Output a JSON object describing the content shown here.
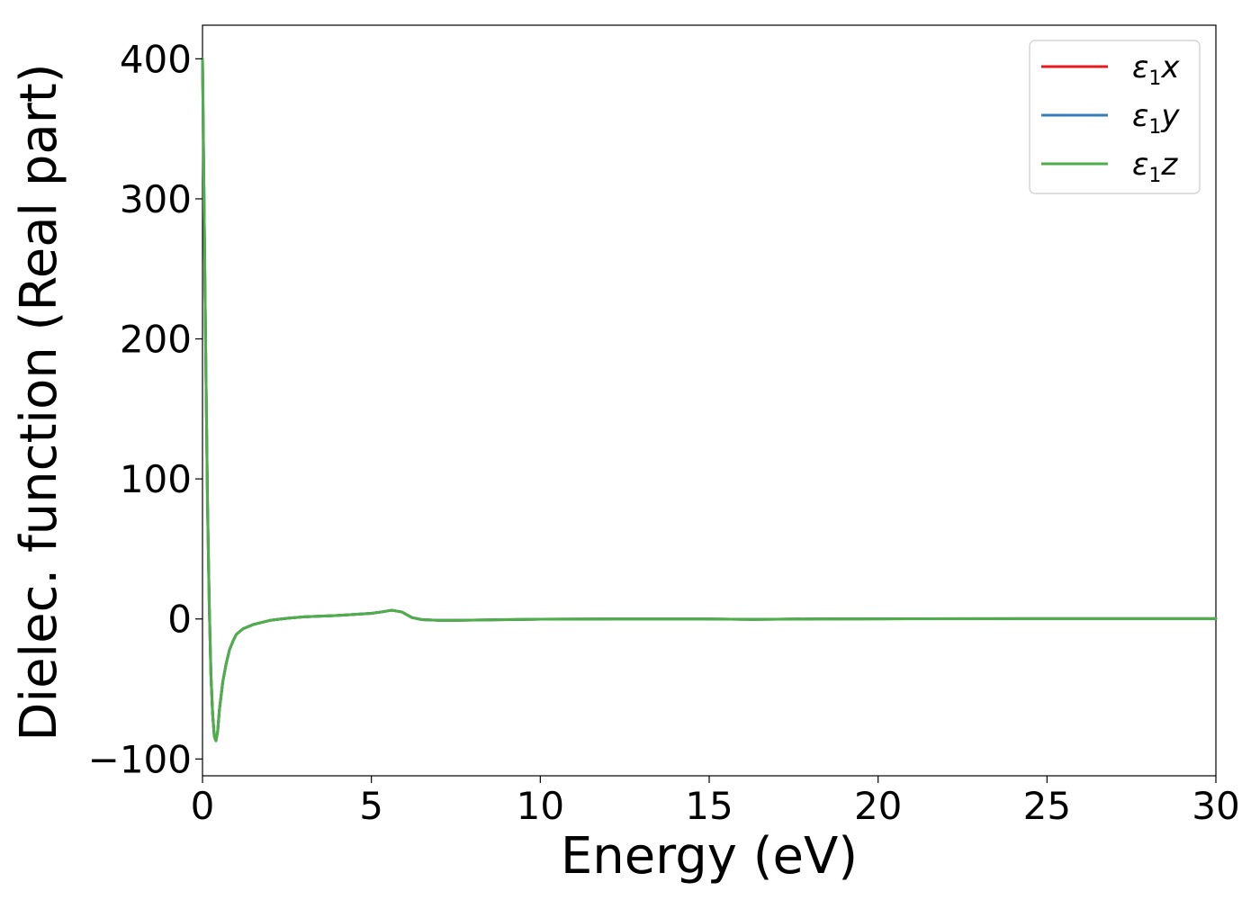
{
  "chart_data": {
    "type": "line",
    "xlabel": "Energy (eV)",
    "ylabel": "Dielec. function (Real part)",
    "xlim": [
      0,
      30
    ],
    "ylim": [
      -112,
      424
    ],
    "xticks": [
      0,
      5,
      10,
      15,
      20,
      25,
      30
    ],
    "xtick_labels": [
      "0",
      "5",
      "10",
      "15",
      "20",
      "25",
      "30"
    ],
    "yticks": [
      -100,
      0,
      100,
      200,
      300,
      400
    ],
    "ytick_labels": [
      "−100",
      "0",
      "100",
      "200",
      "300",
      "400"
    ],
    "grid": false,
    "legend_position": "top-right",
    "series": [
      {
        "name": "ε₁x",
        "symbol": "ε",
        "subscript": "1",
        "suffix": "x",
        "color": "#e41a1c",
        "x": [
          0.0,
          0.05,
          0.1,
          0.15,
          0.2,
          0.25,
          0.3,
          0.35,
          0.4,
          0.45,
          0.5,
          0.6,
          0.7,
          0.8,
          0.9,
          1.0,
          1.2,
          1.5,
          2.0,
          2.5,
          3.0,
          4.0,
          5.0,
          5.3,
          5.6,
          5.9,
          6.2,
          6.5,
          7.0,
          7.5,
          8.0,
          9.0,
          10.0,
          12.0,
          15.0,
          16.3,
          18.0,
          20.0,
          25.0,
          30.0
        ],
        "y": [
          400,
          290,
          180,
          80,
          10,
          -40,
          -68,
          -84,
          -87,
          -80,
          -65,
          -45,
          -32,
          -22,
          -16,
          -11,
          -7,
          -4,
          -1,
          0.5,
          1.5,
          2.5,
          4,
          5,
          6.2,
          5,
          1,
          -0.5,
          -1,
          -1,
          -0.8,
          -0.5,
          -0.2,
          0,
          0,
          -0.3,
          0,
          0.1,
          0.2,
          0.2
        ]
      },
      {
        "name": "ε₁y",
        "symbol": "ε",
        "subscript": "1",
        "suffix": "y",
        "color": "#377eb8",
        "x": [
          0.0,
          0.05,
          0.1,
          0.15,
          0.2,
          0.25,
          0.3,
          0.35,
          0.4,
          0.45,
          0.5,
          0.6,
          0.7,
          0.8,
          0.9,
          1.0,
          1.2,
          1.5,
          2.0,
          2.5,
          3.0,
          4.0,
          5.0,
          5.3,
          5.6,
          5.9,
          6.2,
          6.5,
          7.0,
          7.5,
          8.0,
          9.0,
          10.0,
          12.0,
          15.0,
          16.3,
          18.0,
          20.0,
          25.0,
          30.0
        ],
        "y": [
          400,
          290,
          180,
          80,
          10,
          -40,
          -68,
          -84,
          -87,
          -80,
          -65,
          -45,
          -32,
          -22,
          -16,
          -11,
          -7,
          -4,
          -1,
          0.5,
          1.5,
          2.5,
          4,
          5,
          6.2,
          5,
          1,
          -0.5,
          -1,
          -1,
          -0.8,
          -0.5,
          -0.2,
          0,
          0,
          -0.3,
          0,
          0.1,
          0.2,
          0.2
        ]
      },
      {
        "name": "ε₁z",
        "symbol": "ε",
        "subscript": "1",
        "suffix": "z",
        "color": "#4daf4a",
        "x": [
          0.0,
          0.05,
          0.1,
          0.15,
          0.2,
          0.25,
          0.3,
          0.35,
          0.4,
          0.45,
          0.5,
          0.6,
          0.7,
          0.8,
          0.9,
          1.0,
          1.2,
          1.5,
          2.0,
          2.5,
          3.0,
          4.0,
          5.0,
          5.3,
          5.6,
          5.9,
          6.2,
          6.5,
          7.0,
          7.5,
          8.0,
          9.0,
          10.0,
          12.0,
          15.0,
          16.3,
          18.0,
          20.0,
          25.0,
          30.0
        ],
        "y": [
          400,
          290,
          180,
          80,
          10,
          -40,
          -68,
          -84,
          -87,
          -80,
          -65,
          -45,
          -32,
          -22,
          -16,
          -11,
          -7,
          -4,
          -1,
          0.5,
          1.5,
          2.5,
          4,
          5,
          6.2,
          5,
          1,
          -0.5,
          -1,
          -1,
          -0.8,
          -0.5,
          -0.2,
          0,
          0,
          -0.3,
          0,
          0.1,
          0.2,
          0.2
        ]
      }
    ]
  }
}
